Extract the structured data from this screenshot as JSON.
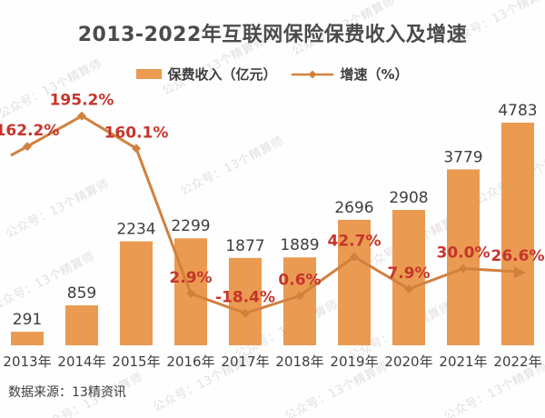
{
  "title": "2013-2022年互联网保险保费收入及增速",
  "legend": {
    "bar_label": "保费收入（亿元）",
    "line_label": "增速（%）"
  },
  "source_note": "数据来源：13精资讯",
  "watermark_text": "公众号：13个精算师",
  "colors": {
    "bar": "#EB9A52",
    "line": "#D1813E",
    "rate_label": "#C5352B",
    "value_label": "#3E3E3E",
    "axis_label": "#3E3E3E",
    "title": "#4D4A4B",
    "watermark": "#CCC5C5"
  },
  "chart_data": {
    "type": "bar",
    "subtype": "bar-line-combo",
    "title": "2013-2022年互联网保险保费收入及增速",
    "categories": [
      "2013年",
      "2014年",
      "2015年",
      "2016年",
      "2017年",
      "2018年",
      "2019年",
      "2020年",
      "2021年",
      "2022年"
    ],
    "series": [
      {
        "name": "保费收入（亿元）",
        "type": "bar",
        "values": [
          291,
          859,
          2234,
          2299,
          1877,
          1889,
          2696,
          2908,
          3779,
          4783
        ],
        "value_labels": [
          "291",
          "859",
          "2234",
          "2299",
          "1877",
          "1889",
          "2696",
          "2908",
          "3779",
          "4783"
        ]
      },
      {
        "name": "增速（%）",
        "type": "line",
        "values": [
          162.2,
          195.2,
          160.1,
          2.9,
          -18.4,
          0.6,
          42.7,
          7.9,
          30.0,
          26.6
        ],
        "value_labels": [
          "162.2%",
          "195.2%",
          "160.1%",
          "2.9%",
          "-18.4%",
          "0.6%",
          "42.7%",
          "7.9%",
          "30.0%",
          "26.6%"
        ]
      }
    ],
    "xlabel": "",
    "ylabel_left": "保费收入（亿元）",
    "ylabel_right": "增速（%）",
    "ylim_left": [
      0,
      5000
    ],
    "ylim_right": [
      -60,
      260
    ],
    "grid": false,
    "axes_visible": false,
    "legend_position": "top",
    "data_labels": true,
    "source": "数据来源：13精资讯"
  }
}
